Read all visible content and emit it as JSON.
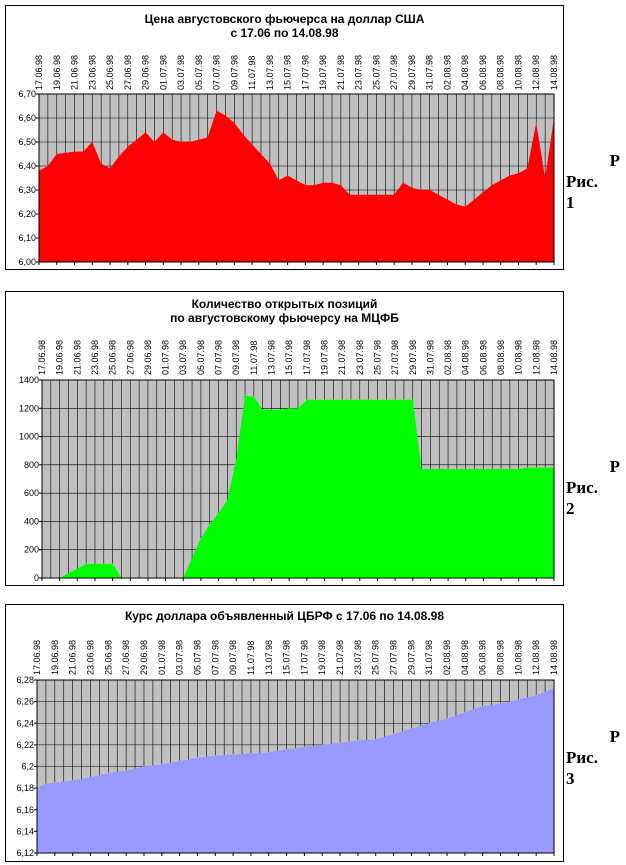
{
  "side_labels": [
    {
      "p": "Р",
      "fig": "Рис.",
      "num": "1"
    },
    {
      "p": "Р",
      "fig": "Рис.",
      "num": "2"
    },
    {
      "p": "Р",
      "fig": "Рис.",
      "num": "3"
    }
  ],
  "chart_data": [
    {
      "type": "area",
      "title": "Цена августовского фьючерса на доллар США",
      "subtitle": "с 17.06 по 14.08.98",
      "color": "#ff0000",
      "ylim": [
        6.0,
        6.7
      ],
      "yticks": [
        "6,00",
        "6,10",
        "6,20",
        "6,30",
        "6,40",
        "6,50",
        "6,60",
        "6,70"
      ],
      "grid": true,
      "x_tick_labels": [
        "17.06.98",
        "19.06.98",
        "21.06.98",
        "23.06.98",
        "25.06.98",
        "27.06.98",
        "29.06.98",
        "01.07.98",
        "03.07.98",
        "05.07.98",
        "07.07.98",
        "09.07.98",
        "11.07.98",
        "13.07.98",
        "15.07.98",
        "17.07.98",
        "19.07.98",
        "21.07.98",
        "23.07.98",
        "25.07.98",
        "27.07.98",
        "29.07.98",
        "31.07.98",
        "02.08.98",
        "04.08.98",
        "06.08.98",
        "08.08.98",
        "10.08.98",
        "12.08.98",
        "14.08.98"
      ],
      "x": [
        0,
        1,
        2,
        4,
        5,
        6,
        7,
        8,
        9,
        10,
        11,
        12,
        13,
        14,
        15,
        16,
        17,
        18,
        19,
        20,
        21,
        22,
        23,
        24,
        25,
        26,
        27,
        28,
        29,
        30,
        31,
        32,
        33,
        34,
        35,
        36,
        37,
        38,
        39,
        40,
        41,
        42,
        43,
        44,
        45,
        46,
        47,
        48,
        49,
        50,
        51,
        52,
        53,
        54,
        55,
        56,
        57,
        58
      ],
      "values": [
        6.38,
        6.4,
        6.45,
        6.46,
        6.46,
        6.5,
        6.41,
        6.39,
        6.44,
        6.48,
        6.51,
        6.54,
        6.5,
        6.54,
        6.51,
        6.5,
        6.5,
        6.51,
        6.52,
        6.63,
        6.61,
        6.58,
        6.53,
        6.49,
        6.45,
        6.41,
        6.34,
        6.36,
        6.34,
        6.32,
        6.32,
        6.33,
        6.33,
        6.32,
        6.28,
        6.28,
        6.28,
        6.28,
        6.28,
        6.28,
        6.33,
        6.31,
        6.3,
        6.3,
        6.28,
        6.26,
        6.24,
        6.23,
        6.26,
        6.29,
        6.32,
        6.34,
        6.36,
        6.37,
        6.39,
        6.58,
        6.35,
        6.6
      ],
      "x_max": 58
    },
    {
      "type": "area",
      "title": "Количество открытых позиций",
      "subtitle": "по августовскому фьючерсу на МЦФБ",
      "color": "#00ff00",
      "ylim": [
        0,
        1400
      ],
      "yticks": [
        "0",
        "200",
        "400",
        "600",
        "800",
        "1000",
        "1200",
        "1400"
      ],
      "grid": true,
      "x_tick_labels": [
        "17.06.98",
        "19.06.98",
        "21.06.98",
        "23.06.98",
        "25.06.98",
        "27.06.98",
        "29.06.98",
        "01.07.98",
        "03.07.98",
        "05.07.98",
        "07.07.98",
        "09.07.98",
        "11.07.98",
        "13.07.98",
        "15.07.98",
        "17.07.98",
        "19.07.98",
        "21.07.98",
        "23.07.98",
        "25.07.98",
        "27.07.98",
        "29.07.98",
        "31.07.98",
        "02.08.98",
        "04.08.98",
        "06.08.98",
        "08.08.98",
        "10.08.98",
        "12.08.98",
        "14.08.98"
      ],
      "x": [
        0,
        2,
        5,
        7,
        8,
        9,
        10,
        11,
        12,
        13,
        14,
        15,
        16,
        18,
        19,
        20,
        21,
        22,
        23,
        24,
        25,
        26,
        27,
        28,
        29,
        30,
        31,
        32,
        33,
        34,
        35,
        36,
        37,
        38,
        39,
        40,
        41,
        42,
        43,
        44,
        45,
        46,
        47,
        48,
        49,
        50,
        51,
        52,
        53,
        54,
        55,
        56,
        57,
        58
      ],
      "values": [
        0,
        0,
        100,
        100,
        100,
        0,
        0,
        0,
        0,
        0,
        0,
        0,
        0,
        280,
        380,
        460,
        550,
        840,
        1290,
        1280,
        1190,
        1190,
        1190,
        1200,
        1200,
        1260,
        1260,
        1260,
        1260,
        1260,
        1260,
        1260,
        1260,
        1260,
        1260,
        1260,
        1260,
        1260,
        770,
        770,
        770,
        770,
        770,
        770,
        770,
        770,
        770,
        770,
        770,
        770,
        780,
        780,
        780,
        780
      ],
      "x_max": 58
    },
    {
      "type": "area",
      "title": "Курс доллара объявленный ЦБРФ с 17.06 по 14.08.98",
      "color": "#9999ff",
      "ylim": [
        6.12,
        6.28
      ],
      "yticks": [
        "6,12",
        "6,14",
        "6,16",
        "6,18",
        "6,2",
        "6,22",
        "6,24",
        "6,26",
        "6,28"
      ],
      "grid": true,
      "x_tick_labels": [
        "17.06.98",
        "19.06.98",
        "21.06.98",
        "23.06.98",
        "25.06.98",
        "27.06.98",
        "29.06.98",
        "01.07.98",
        "03.07.98",
        "05.07.98",
        "07.07.98",
        "09.07.98",
        "11.07.98",
        "13.07.98",
        "15.07.98",
        "17.07.98",
        "19.07.98",
        "21.07.98",
        "23.07.98",
        "25.07.98",
        "27.07.98",
        "29.07.98",
        "31.07.98",
        "02.08.98",
        "04.08.98",
        "06.08.98",
        "08.08.98",
        "10.08.98",
        "12.08.98",
        "14.08.98"
      ],
      "x": [
        0,
        1,
        2,
        4,
        6,
        8,
        10,
        12,
        14,
        16,
        18,
        20,
        22,
        24,
        26,
        28,
        30,
        32,
        34,
        36,
        38,
        40,
        42,
        44,
        46,
        48,
        50,
        52,
        54,
        56,
        58
      ],
      "values": [
        6.18,
        6.184,
        6.185,
        6.187,
        6.19,
        6.194,
        6.196,
        6.2,
        6.202,
        6.205,
        6.208,
        6.21,
        6.211,
        6.212,
        6.213,
        6.216,
        6.218,
        6.22,
        6.222,
        6.224,
        6.225,
        6.23,
        6.235,
        6.24,
        6.244,
        6.25,
        6.256,
        6.258,
        6.262,
        6.266,
        6.272
      ],
      "x_max": 58
    }
  ]
}
